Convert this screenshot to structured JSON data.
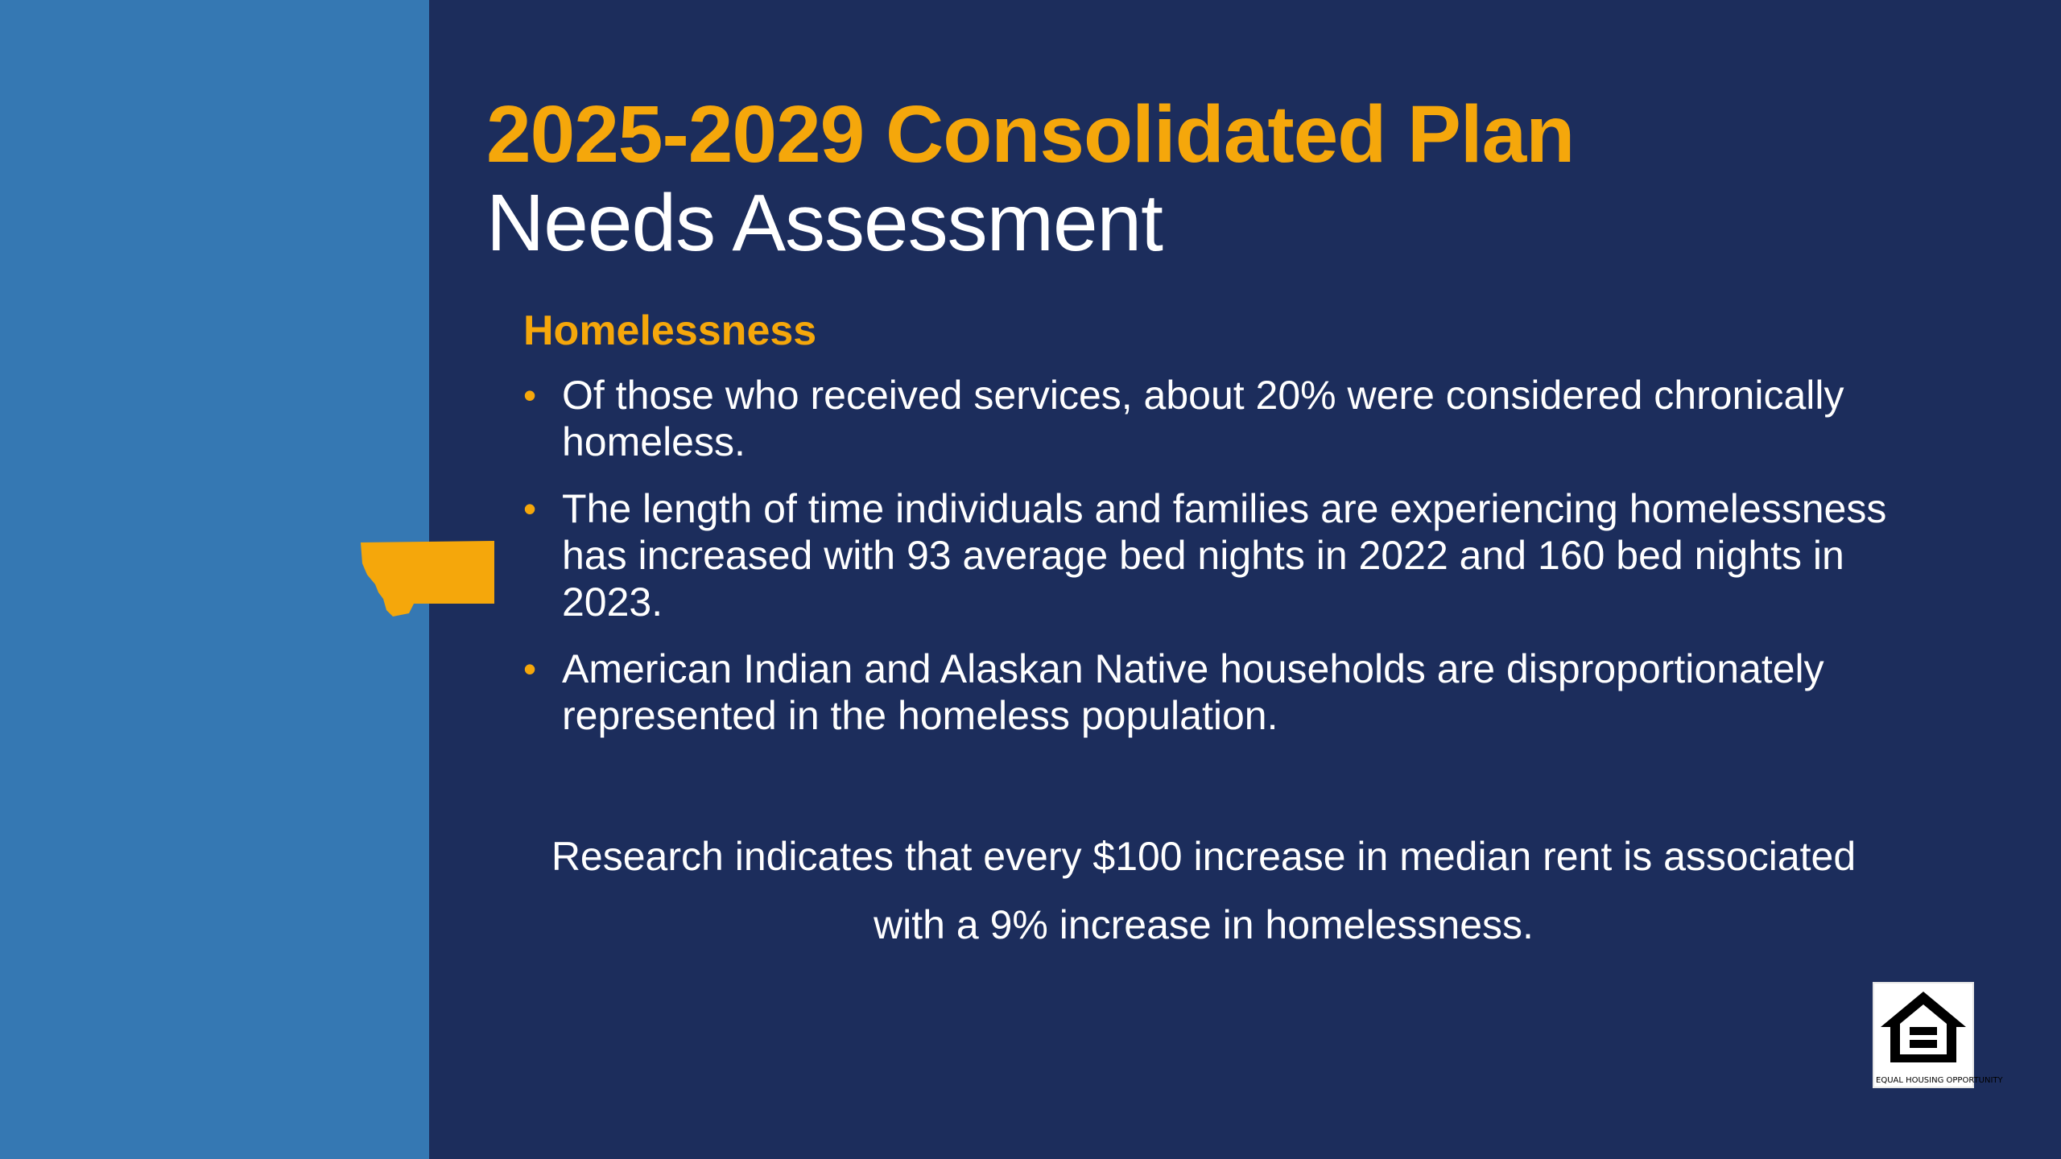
{
  "slide": {
    "title": "2025-2029 Consolidated Plan",
    "subtitle": "Needs Assessment",
    "section_heading": "Homelessness",
    "bullets": [
      "Of those who received services, about 20% were considered chronically homeless.",
      "The length of time individuals and families are experiencing homelessness has increased with 93 average bed nights in 2022 and 160 bed nights in 2023.",
      "American Indian and Alaskan Native households are disproportionately represented in the homeless population."
    ],
    "bullet_glyph": "•",
    "callout": "Research indicates that every $100 increase in median rent is associated with a 9% increase in homelessness.",
    "logo_caption": "EQUAL HOUSING OPPORTUNITY"
  },
  "icons": {
    "state_shape": "montana-state-icon",
    "logo": "equal-housing-opportunity-icon"
  },
  "colors": {
    "background": "#1c2d5c",
    "left_panel": "#3578b3",
    "accent": "#f5a70b",
    "text": "#ffffff"
  }
}
